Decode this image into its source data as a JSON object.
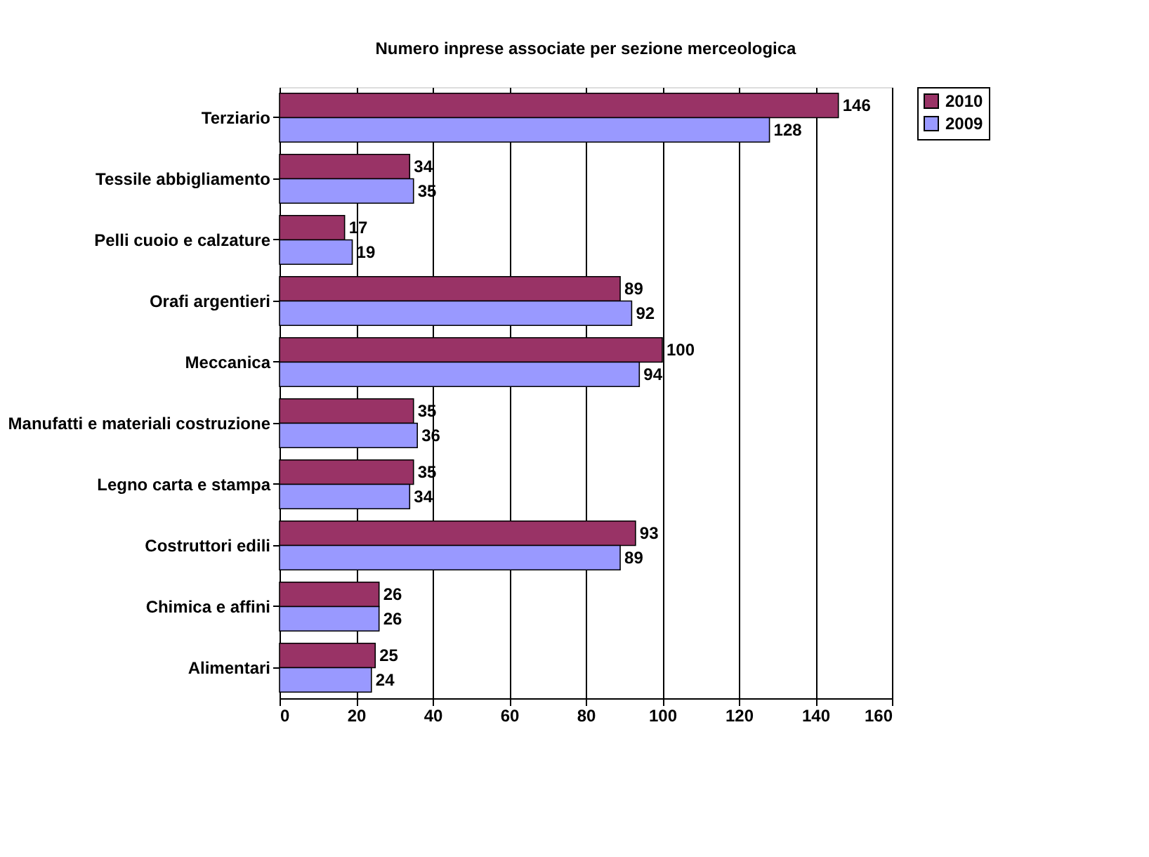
{
  "chart_data": {
    "type": "bar",
    "orientation": "horizontal",
    "title": "Numero inprese associate per sezione merceologica",
    "categories": [
      "Terziario",
      "Tessile abbigliamento",
      "Pelli cuoio e calzature",
      "Orafi argentieri",
      "Meccanica",
      "Manufatti e materiali costruzione",
      "Legno carta e stampa",
      "Costruttori edili",
      "Chimica e affini",
      "Alimentari"
    ],
    "series": [
      {
        "name": "2010",
        "color": "#993366",
        "values": [
          146,
          34,
          17,
          89,
          100,
          35,
          35,
          93,
          26,
          25
        ]
      },
      {
        "name": "2009",
        "color": "#9999ff",
        "values": [
          128,
          35,
          19,
          92,
          94,
          36,
          34,
          89,
          26,
          24
        ]
      }
    ],
    "xlim": [
      0,
      160
    ],
    "xticks": [
      0,
      20,
      40,
      60,
      80,
      100,
      120,
      140,
      160
    ],
    "grid": "x",
    "legend": "right",
    "data_labels": true
  }
}
